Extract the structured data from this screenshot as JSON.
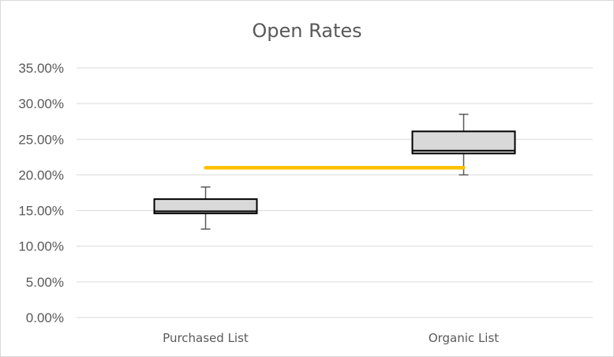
{
  "chart_data": {
    "type": "boxplot",
    "title": "Open Rates",
    "xlabel": "",
    "ylabel": "",
    "categories": [
      "Purchased List",
      "Organic List"
    ],
    "y_ticks": [
      "0.00%",
      "5.00%",
      "10.00%",
      "15.00%",
      "20.00%",
      "25.00%",
      "30.00%",
      "35.00%"
    ],
    "ylim": [
      0,
      0.35
    ],
    "grid": true,
    "legend": "none",
    "boxes": [
      {
        "category": "Purchased List",
        "min": 0.124,
        "q1": 0.146,
        "median": 0.149,
        "q3": 0.166,
        "max": 0.183
      },
      {
        "category": "Organic List",
        "min": 0.2,
        "q1": 0.23,
        "median": 0.234,
        "q3": 0.261,
        "max": 0.285
      }
    ],
    "reference_line": {
      "value": 0.21,
      "from_category": "Purchased List",
      "to_category": "Organic List",
      "color": "#ffc000"
    },
    "colors": {
      "box_fill": "#d9d9d9",
      "box_stroke": "#000000",
      "whisker": "#595959",
      "grid": "#d9d9d9",
      "text": "#595959"
    }
  }
}
